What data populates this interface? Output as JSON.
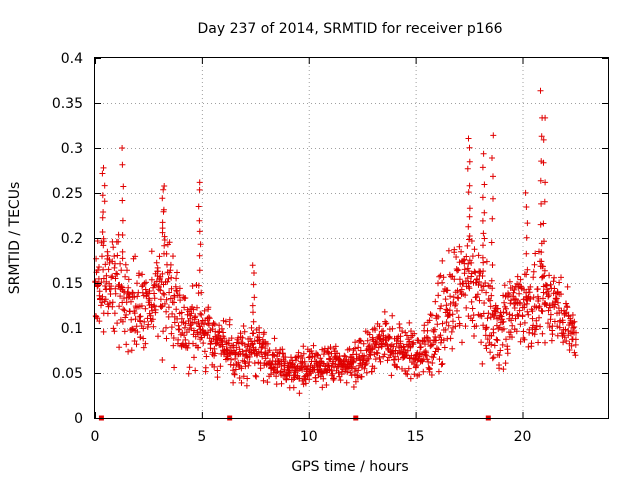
{
  "chart_data": {
    "type": "scatter",
    "title": "Day 237 of 2014, SRMTID for receiver p166",
    "xlabel": "GPS time / hours",
    "ylabel": "SRMTID / TECUs",
    "xlim": [
      0,
      24
    ],
    "ylim": [
      0,
      0.4
    ],
    "xticks": [
      0,
      5,
      10,
      15,
      20
    ],
    "xtick_labels": [
      "0",
      "5",
      "10",
      "15",
      "20"
    ],
    "yticks": [
      0,
      0.05,
      0.1,
      0.15,
      0.2,
      0.25,
      0.3,
      0.35,
      0.4
    ],
    "ytick_labels": [
      "0",
      "0.05",
      "0.1",
      "0.15",
      "0.2",
      "0.25",
      "0.3",
      "0.35",
      "0.4"
    ],
    "grid": true,
    "marker": "plus",
    "series_color": "#e00000",
    "envelope": {
      "description": "Dense cloud of per-epoch SRMTID estimates; approximate envelope read from the figure",
      "x_hours": [
        0.0,
        0.5,
        1.0,
        1.5,
        2.0,
        2.5,
        3.0,
        3.5,
        4.0,
        4.5,
        5.0,
        5.5,
        6.0,
        6.5,
        7.0,
        7.5,
        8.0,
        8.5,
        9.0,
        9.5,
        10.0,
        10.5,
        11.0,
        11.5,
        12.0,
        12.5,
        13.0,
        13.5,
        14.0,
        14.5,
        15.0,
        15.5,
        16.0,
        16.5,
        17.0,
        17.5,
        18.0,
        18.5,
        19.0,
        19.5,
        20.0,
        20.5,
        21.0,
        21.5,
        22.0,
        22.5
      ],
      "y_center": [
        0.15,
        0.15,
        0.14,
        0.13,
        0.12,
        0.12,
        0.15,
        0.14,
        0.11,
        0.1,
        0.1,
        0.09,
        0.08,
        0.07,
        0.07,
        0.08,
        0.07,
        0.06,
        0.055,
        0.055,
        0.055,
        0.06,
        0.06,
        0.06,
        0.06,
        0.07,
        0.08,
        0.085,
        0.08,
        0.075,
        0.07,
        0.075,
        0.1,
        0.12,
        0.14,
        0.15,
        0.14,
        0.11,
        0.1,
        0.12,
        0.13,
        0.12,
        0.13,
        0.13,
        0.11,
        0.09
      ],
      "y_spread": [
        0.05,
        0.05,
        0.05,
        0.045,
        0.04,
        0.045,
        0.05,
        0.045,
        0.04,
        0.035,
        0.035,
        0.03,
        0.025,
        0.025,
        0.025,
        0.025,
        0.02,
        0.02,
        0.018,
        0.018,
        0.018,
        0.018,
        0.018,
        0.018,
        0.02,
        0.022,
        0.025,
        0.025,
        0.025,
        0.025,
        0.025,
        0.03,
        0.04,
        0.045,
        0.05,
        0.05,
        0.05,
        0.04,
        0.04,
        0.04,
        0.04,
        0.04,
        0.04,
        0.035,
        0.03,
        0.025
      ],
      "spikes": [
        {
          "x": 0.4,
          "y": 0.28
        },
        {
          "x": 1.3,
          "y": 0.3
        },
        {
          "x": 3.2,
          "y": 0.26
        },
        {
          "x": 4.9,
          "y": 0.265
        },
        {
          "x": 7.4,
          "y": 0.17
        },
        {
          "x": 17.5,
          "y": 0.31
        },
        {
          "x": 18.6,
          "y": 0.315
        },
        {
          "x": 18.2,
          "y": 0.29
        },
        {
          "x": 20.2,
          "y": 0.25
        },
        {
          "x": 20.9,
          "y": 0.36
        },
        {
          "x": 21.0,
          "y": 0.33
        }
      ],
      "baseline_markers_x": [
        0.3,
        6.3,
        12.2,
        18.4
      ]
    }
  }
}
